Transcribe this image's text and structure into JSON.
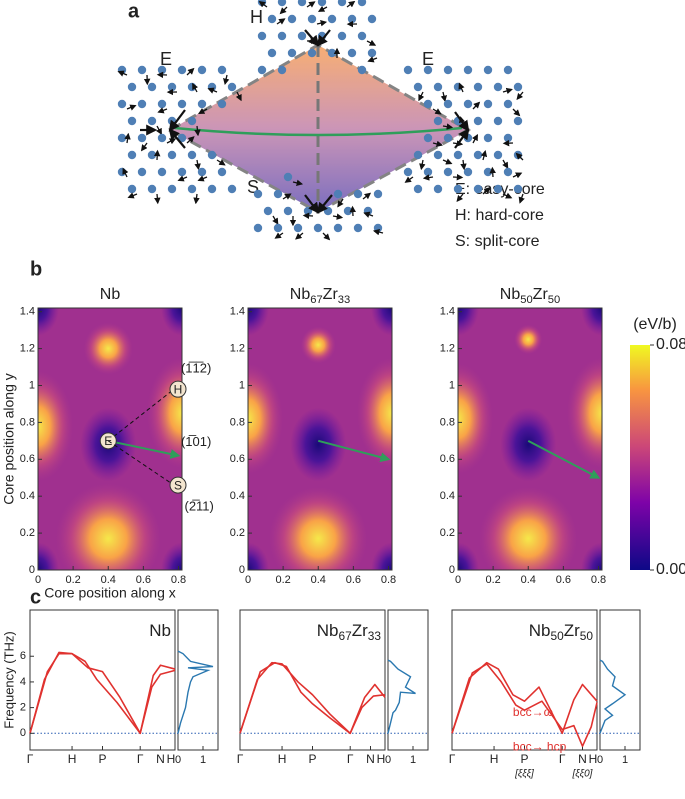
{
  "panel_a": {
    "label": "a",
    "sites": [
      "E",
      "H",
      "E",
      "S"
    ],
    "legend": [
      "E: easy-core",
      "H: hard-core",
      "S: split-core"
    ]
  },
  "panel_b": {
    "label": "b",
    "y_title": "Core position along y",
    "x_title": "Core position along x",
    "xlim": [
      0,
      0.82
    ],
    "ylim": [
      0,
      1.42
    ],
    "xticks": [
      0,
      0.2,
      0.4,
      0.6,
      0.8
    ],
    "yticks": [
      0,
      0.2,
      0.4,
      0.6,
      0.8,
      1,
      1.2,
      1.4
    ],
    "maps": [
      {
        "title": [
          {
            "text": "Nb"
          }
        ]
      },
      {
        "title": [
          {
            "text": "Nb"
          },
          {
            "text": "67",
            "sub": true
          },
          {
            "text": "Zr"
          },
          {
            "text": "33",
            "sub": true
          }
        ]
      },
      {
        "title": [
          {
            "text": "Nb"
          },
          {
            "text": "50",
            "sub": true
          },
          {
            "text": "Zr"
          },
          {
            "text": "50",
            "sub": true
          }
        ]
      }
    ],
    "sites": [
      "H",
      "E",
      "S"
    ],
    "directions": [
      "(1̅1̅2)",
      "(1̅01)",
      "(2̅11)"
    ],
    "colorbar": {
      "unit": "(eV/b)",
      "lim": [
        0,
        0.08
      ],
      "ticks": [
        {
          "value": 0,
          "label": "0.00"
        },
        {
          "value": 0.08,
          "label": "0.08"
        }
      ]
    }
  },
  "panel_c": {
    "label": "c",
    "y_title": "Frequency (THz)",
    "ylim": [
      -1.3,
      9.6
    ],
    "yticks": [
      0,
      2,
      4,
      6
    ],
    "path_labels": [
      "Γ",
      "H",
      "P",
      "Γ",
      "N",
      "H"
    ],
    "dos_xlim": [
      0,
      1.6
    ],
    "dos_ticks": [
      0,
      1
    ],
    "plots": [
      {
        "title": [
          {
            "text": "Nb"
          }
        ]
      },
      {
        "title": [
          {
            "text": "Nb"
          },
          {
            "text": "67",
            "sub": true
          },
          {
            "text": "Zr"
          },
          {
            "text": "33",
            "sub": true
          }
        ]
      },
      {
        "title": [
          {
            "text": "Nb"
          },
          {
            "text": "50",
            "sub": true
          },
          {
            "text": "Zr"
          },
          {
            "text": "50",
            "sub": true
          }
        ]
      }
    ],
    "directions": [
      "[ξξξ]",
      "[ξξ0]"
    ],
    "annotations": [
      "bcc→ω",
      "bcc→ hcp"
    ]
  }
}
